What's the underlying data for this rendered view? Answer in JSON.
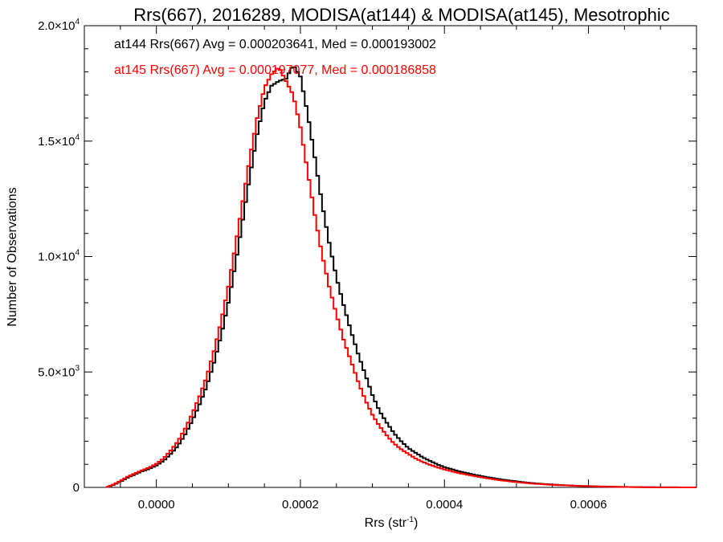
{
  "chart_data": {
    "type": "line",
    "title": "Rrs(667), 2016289, MODISA(at144) & MODISA(at145), Mesotrophic",
    "xlabel_main": "Rrs (str",
    "xlabel_sup": "-1",
    "xlabel_end": ")",
    "ylabel": "Number of Observations",
    "xlim": [
      -0.0001,
      0.00075
    ],
    "ylim": [
      0,
      20000
    ],
    "x_ticks": [
      {
        "value": 0.0,
        "label": "0.0000"
      },
      {
        "value": 0.0002,
        "label": "0.0002"
      },
      {
        "value": 0.0004,
        "label": "0.0004"
      },
      {
        "value": 0.0006,
        "label": "0.0006"
      }
    ],
    "y_ticks": [
      {
        "value": 0,
        "mant": "0",
        "exp": ""
      },
      {
        "value": 5000,
        "mant": "5.0×10",
        "exp": "3"
      },
      {
        "value": 10000,
        "mant": "1.0×10",
        "exp": "4"
      },
      {
        "value": 15000,
        "mant": "1.5×10",
        "exp": "4"
      },
      {
        "value": 20000,
        "mant": "2.0×10",
        "exp": "4"
      }
    ],
    "series": [
      {
        "name": "at144",
        "color": "#000000",
        "annotation": "at144 Rrs(667) Avg = 0.000203641, Med = 0.000193002",
        "x": [
          -7e-05,
          -6e-05,
          -5e-05,
          -4e-05,
          -3e-05,
          -2e-05,
          -1e-05,
          0.0,
          1e-05,
          2e-05,
          3e-05,
          4e-05,
          5e-05,
          6e-05,
          7e-05,
          8e-05,
          9e-05,
          0.0001,
          0.00011,
          0.00012,
          0.00013,
          0.00014,
          0.00015,
          0.00016,
          0.00017,
          0.00018,
          0.00019,
          0.0002,
          0.00021,
          0.00022,
          0.00023,
          0.00024,
          0.00025,
          0.00026,
          0.00027,
          0.00028,
          0.00029,
          0.0003,
          0.00031,
          0.00032,
          0.00033,
          0.00034,
          0.00035,
          0.00036,
          0.00037,
          0.00038,
          0.00039,
          0.0004,
          0.00042,
          0.00044,
          0.00046,
          0.00048,
          0.0005,
          0.00052,
          0.00055,
          0.00058,
          0.00061,
          0.00064,
          0.00067,
          0.0007,
          0.00075
        ],
        "y": [
          0,
          100,
          250,
          420,
          560,
          700,
          800,
          950,
          1150,
          1450,
          1800,
          2300,
          2900,
          3600,
          4400,
          5400,
          6600,
          8000,
          9700,
          11600,
          13500,
          15300,
          16700,
          17400,
          17600,
          17700,
          18300,
          17800,
          16200,
          14300,
          12300,
          10600,
          9100,
          7900,
          6800,
          5800,
          4900,
          4000,
          3300,
          2800,
          2350,
          2000,
          1700,
          1500,
          1300,
          1150,
          1000,
          880,
          700,
          560,
          440,
          340,
          260,
          190,
          120,
          75,
          45,
          25,
          12,
          5,
          0
        ]
      },
      {
        "name": "at145",
        "color": "#ff0000",
        "annotation": "at145 Rrs(667) Avg = 0.000197077, Med = 0.000186858",
        "x": [
          -7e-05,
          -6e-05,
          -5e-05,
          -4e-05,
          -3e-05,
          -2e-05,
          -1e-05,
          0.0,
          1e-05,
          2e-05,
          3e-05,
          4e-05,
          5e-05,
          6e-05,
          7e-05,
          8e-05,
          9e-05,
          0.0001,
          0.00011,
          0.00012,
          0.00013,
          0.00014,
          0.00015,
          0.00016,
          0.00017,
          0.00018,
          0.00019,
          0.0002,
          0.00021,
          0.00022,
          0.00023,
          0.00024,
          0.00025,
          0.00026,
          0.00027,
          0.00028,
          0.00029,
          0.0003,
          0.00031,
          0.00032,
          0.00033,
          0.00034,
          0.00035,
          0.00036,
          0.00037,
          0.00038,
          0.00039,
          0.0004,
          0.00042,
          0.00044,
          0.00046,
          0.00048,
          0.0005,
          0.00052,
          0.00055,
          0.00058,
          0.00061,
          0.00064,
          0.00067,
          0.0007,
          0.00075
        ],
        "y": [
          0,
          120,
          280,
          460,
          600,
          740,
          860,
          1020,
          1250,
          1600,
          2000,
          2550,
          3200,
          3950,
          4800,
          5900,
          7200,
          8700,
          10500,
          12400,
          14300,
          16000,
          17300,
          17900,
          18200,
          17600,
          17000,
          15600,
          13700,
          11800,
          10100,
          8700,
          7500,
          6400,
          5500,
          4600,
          3800,
          3150,
          2650,
          2250,
          1900,
          1650,
          1450,
          1250,
          1100,
          980,
          870,
          780,
          620,
          500,
          390,
          300,
          230,
          170,
          110,
          70,
          40,
          22,
          10,
          4,
          0
        ]
      }
    ]
  }
}
